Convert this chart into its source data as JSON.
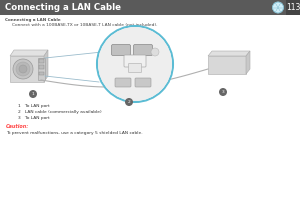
{
  "title": "Connecting a LAN Cable",
  "page_num": "113",
  "header_bg": "#5a5a5a",
  "header_text_color": "#ffffff",
  "body_bg": "#ffffff",
  "subtitle": "Connecting a LAN Cable",
  "intro_text": "Connect with a 100BASE-TX or 10BASE-T LAN cable (not included).",
  "list_items": [
    "1   To LAN port",
    "2   LAN cable (commercially available)",
    "3   To LAN port"
  ],
  "caution_label": "Caution:",
  "caution_text": "To prevent malfunctions, use a category 5 shielded LAN cable.",
  "caution_color": "#ff4444",
  "zoom_circle_color": "#5bbcd4",
  "projector_color": "#d8d8d8",
  "switch_color": "#d5d5d5",
  "cable_color": "#b0b0b0",
  "label_bg": "#888888"
}
